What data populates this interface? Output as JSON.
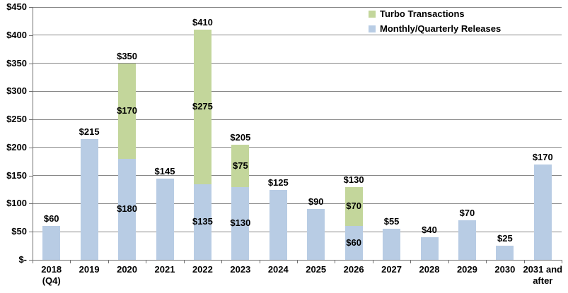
{
  "chart_data": {
    "type": "bar",
    "stacked": true,
    "title": "",
    "xlabel": "",
    "ylabel": "",
    "categories": [
      "2018\n(Q4)",
      "2019",
      "2020",
      "2021",
      "2022",
      "2023",
      "2024",
      "2025",
      "2026",
      "2027",
      "2028",
      "2029",
      "2030",
      "2031 and\nafter"
    ],
    "series": [
      {
        "name": "Monthly/Quarterly Releases",
        "color": "#b8cce4",
        "values": [
          60,
          215,
          180,
          145,
          135,
          130,
          125,
          90,
          60,
          55,
          40,
          70,
          25,
          170
        ]
      },
      {
        "name": "Turbo Transactions",
        "color": "#c3d69b",
        "values": [
          0,
          0,
          170,
          0,
          275,
          75,
          0,
          0,
          70,
          0,
          0,
          0,
          0,
          0
        ]
      }
    ],
    "totals": [
      60,
      215,
      350,
      145,
      410,
      205,
      125,
      90,
      130,
      55,
      40,
      70,
      25,
      170
    ],
    "value_prefix": "$",
    "ylim": [
      0,
      450
    ],
    "y_step": 50,
    "y_tick_labels": [
      "$-",
      "$50",
      "$100",
      "$150",
      "$200",
      "$250",
      "$300",
      "$350",
      "$400",
      "$450"
    ],
    "grid": true,
    "legend": {
      "position": "top-right",
      "items": [
        {
          "label": "Turbo Transactions",
          "color": "#c3d69b"
        },
        {
          "label": "Monthly/Quarterly Releases",
          "color": "#b8cce4"
        }
      ]
    }
  },
  "colors": {
    "gridline": "#878787",
    "axis_line": "#6f6f6f",
    "label_text": "#000000",
    "background": "#ffffff"
  }
}
